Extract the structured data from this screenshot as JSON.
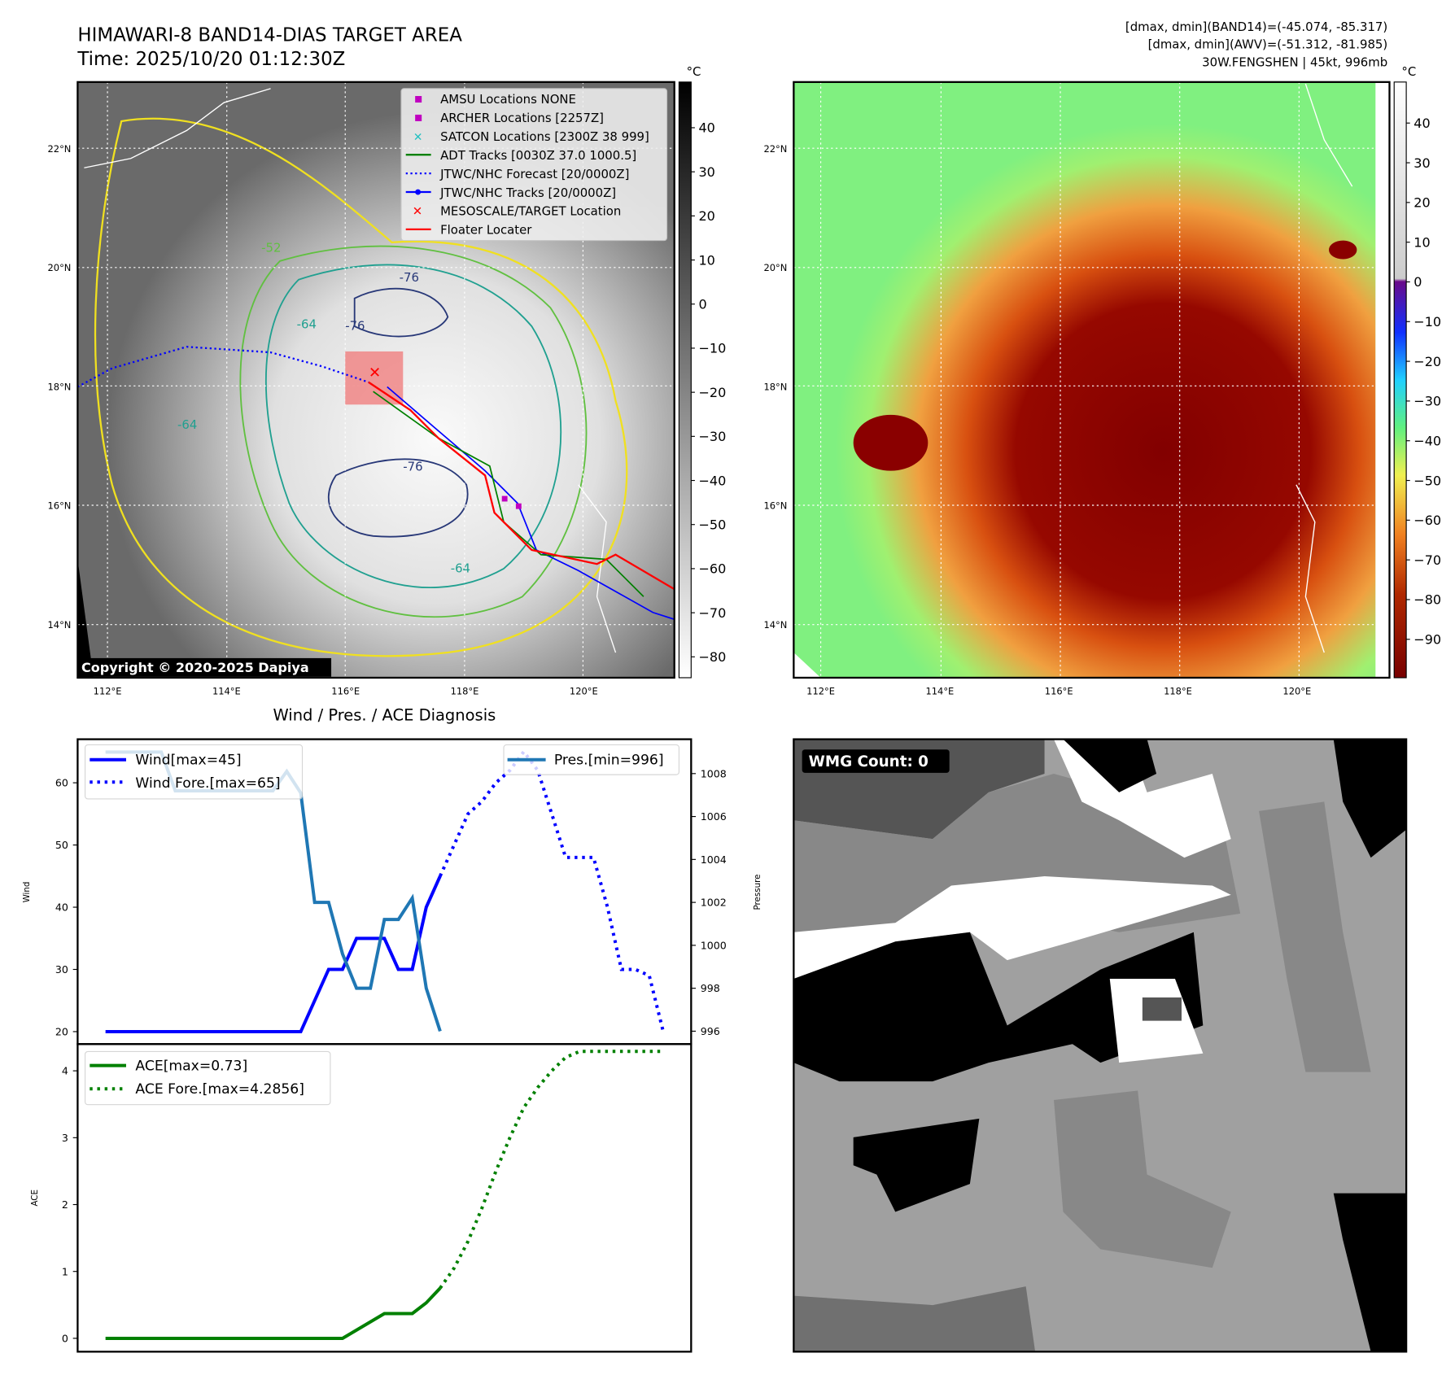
{
  "header": {
    "title": "HIMAWARI-8 BAND14-DIAS TARGET AREA",
    "time": "Time: 2025/10/20 01:12:30Z",
    "stats_line1": "[dmax, dmin](BAND14)=(-45.074, -85.317)",
    "stats_line2": "[dmax, dmin](AWV)=(-51.312, -81.985)",
    "stats_line3": "30W.FENGSHEN | 45kt, 996mb"
  },
  "map": {
    "lat_labels": [
      "22°N",
      "20°N",
      "18°N",
      "16°N",
      "14°N"
    ],
    "lon_labels": [
      "112°E",
      "114°E",
      "116°E",
      "118°E",
      "120°E"
    ],
    "copyright": "Copyright © 2020-2025 Dapiya",
    "contour_labels": [
      "-76",
      "-64",
      "-76",
      "-76",
      "-64",
      "-64",
      "-52"
    ],
    "legend": [
      {
        "label": "AMSU Locations NONE",
        "color": "#c000c0",
        "marker": "square"
      },
      {
        "label": "ARCHER Locations [2257Z]",
        "color": "#c000c0",
        "marker": "square"
      },
      {
        "label": "SATCON Locations [2300Z 38 999]",
        "color": "#20c0c0",
        "marker": "x"
      },
      {
        "label": "ADT Tracks [0030Z 37.0 1000.5]",
        "color": "#008000",
        "marker": "line"
      },
      {
        "label": "JTWC/NHC Forecast [20/0000Z]",
        "color": "#0000ff",
        "marker": "dotted"
      },
      {
        "label": "JTWC/NHC Tracks [20/0000Z]",
        "color": "#0000ff",
        "marker": "line-dot"
      },
      {
        "label": "MESOSCALE/TARGET Location",
        "color": "#ff0000",
        "marker": "x"
      },
      {
        "label": "Floater Locater",
        "color": "#ff0000",
        "marker": "line"
      }
    ]
  },
  "colorbar1": {
    "unit": "°C",
    "ticks": [
      "40",
      "30",
      "20",
      "10",
      "0",
      "−10",
      "−20",
      "−30",
      "−40",
      "−50",
      "−60",
      "−70",
      "−80"
    ]
  },
  "colorbar2": {
    "unit": "°C",
    "ticks": [
      "40",
      "30",
      "20",
      "10",
      "0",
      "−10",
      "−20",
      "−30",
      "−40",
      "−50",
      "−60",
      "−70",
      "−80",
      "−90"
    ]
  },
  "wmg": {
    "label": "WMG Count: 0"
  },
  "chart_data": [
    {
      "type": "line",
      "title": "Wind / Pres. / ACE Diagnosis",
      "ylabel": "Wind",
      "ylabel2": "Pressure",
      "ylim": [
        18,
        67
      ],
      "ylim2": [
        995.4,
        1009.6
      ],
      "xlim": [
        -2,
        42
      ],
      "yticks": [
        20,
        30,
        40,
        50,
        60
      ],
      "yticks2": [
        996,
        998,
        1000,
        1002,
        1004,
        1006,
        1008
      ],
      "series": [
        {
          "name": "Wind[max=45]",
          "color": "#0000ff",
          "style": "solid",
          "axis": "left",
          "x": [
            0,
            14,
            16,
            17,
            18,
            20,
            21,
            22,
            23,
            24
          ],
          "y": [
            20,
            20,
            30,
            30,
            35,
            35,
            30,
            30,
            40,
            45
          ]
        },
        {
          "name": "Wind Fore.[max=65]",
          "color": "#0000ff",
          "style": "dotted",
          "axis": "left",
          "x": [
            24,
            26,
            27,
            28,
            29,
            30,
            31,
            32,
            33,
            34,
            35,
            36,
            37,
            38,
            39,
            40
          ],
          "y": [
            45,
            55,
            57,
            60,
            62,
            65,
            62,
            55,
            48,
            48,
            48,
            40,
            30,
            30,
            29,
            20
          ]
        },
        {
          "name": "Pres.[min=996]",
          "color": "#1f77b4",
          "style": "solid",
          "axis": "right",
          "x": [
            0,
            4,
            5,
            12,
            13,
            14,
            15,
            16,
            17,
            18,
            19,
            20,
            21,
            22,
            23,
            24
          ],
          "y": [
            1009,
            1009,
            1007.2,
            1007.2,
            1008.1,
            1007.1,
            1002,
            1002,
            999.6,
            998,
            998,
            1001.2,
            1001.2,
            1002.2,
            998,
            996
          ]
        }
      ]
    },
    {
      "type": "line",
      "ylabel": "ACE",
      "ylim": [
        -0.2,
        4.4
      ],
      "xlim": [
        -2,
        42
      ],
      "yticks": [
        0,
        1,
        2,
        3,
        4
      ],
      "series": [
        {
          "name": "ACE[max=0.73]",
          "color": "#008000",
          "style": "solid",
          "x": [
            0,
            17,
            20,
            22,
            23,
            24
          ],
          "y": [
            0,
            0,
            0.37,
            0.37,
            0.53,
            0.75
          ]
        },
        {
          "name": "ACE Fore.[max=4.2856]",
          "color": "#008000",
          "style": "dotted",
          "x": [
            24,
            25,
            26,
            27,
            28,
            29,
            30,
            31,
            32,
            33,
            34,
            35,
            36,
            38,
            40
          ],
          "y": [
            0.75,
            1.05,
            1.45,
            1.95,
            2.5,
            3.0,
            3.45,
            3.75,
            4.0,
            4.2,
            4.29,
            4.29,
            4.29,
            4.29,
            4.29
          ]
        }
      ]
    }
  ]
}
